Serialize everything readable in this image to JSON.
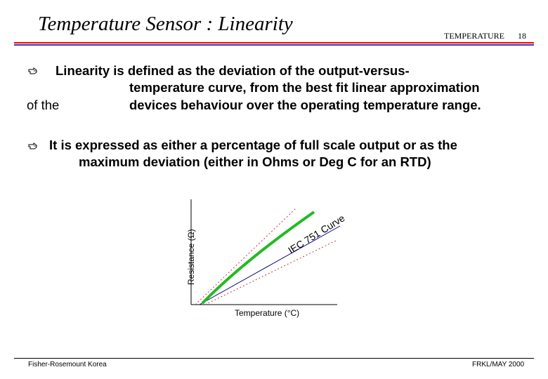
{
  "header": {
    "title": "Temperature Sensor : Linearity",
    "section": "TEMPERATURE",
    "slide_number": "18"
  },
  "bullets": [
    {
      "icon": "pointing-hand-icon",
      "lines": [
        "Linearity is defined as the deviation of the output-versus-",
        "temperature curve, from the best fit linear approximation",
        "of the",
        "devices behaviour over the operating temperature range."
      ]
    },
    {
      "icon": "pointing-hand-icon",
      "lines": [
        "It is expressed as either a percentage of full scale output or as the",
        "maximum deviation (either in Ohms or Deg C for an RTD)"
      ]
    }
  ],
  "chart_data": {
    "type": "line",
    "xlabel": "Temperature (°C)",
    "ylabel": "Resistance (Ω)",
    "curve_label": "IEC 751 Curve",
    "colors": {
      "curve": "#22bb22",
      "fit_line": "#000080",
      "tolerance": "#cc3333"
    }
  },
  "footer": {
    "left": "Fisher-Rosemount Korea",
    "right": "FRKL/MAY 2000"
  }
}
